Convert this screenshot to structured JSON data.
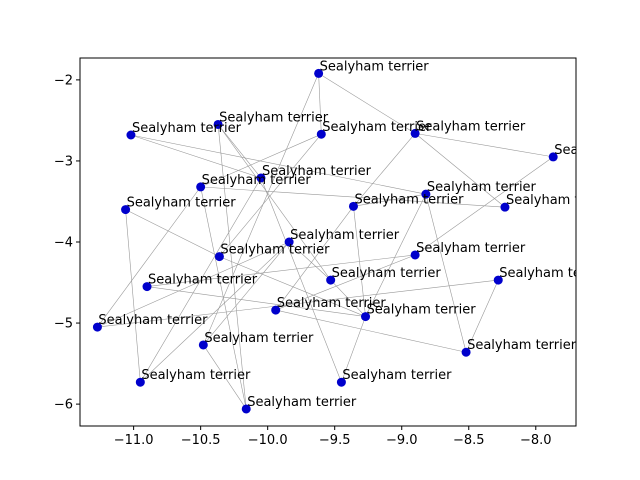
{
  "chart_data": {
    "type": "scatter",
    "title": "",
    "xlabel": "",
    "ylabel": "",
    "xlim": [
      -11.4,
      -7.7
    ],
    "ylim": [
      -6.27,
      -1.73
    ],
    "xticks": [
      -11.0,
      -10.5,
      -10.0,
      -9.5,
      -9.0,
      -8.5,
      -8.0
    ],
    "xtick_labels": [
      "−11.0",
      "−10.5",
      "−10.0",
      "−9.5",
      "−9.0",
      "−8.5",
      "−8.0"
    ],
    "yticks": [
      -2,
      -3,
      -4,
      -5,
      -6
    ],
    "ytick_labels": [
      "−2",
      "−3",
      "−4",
      "−5",
      "−6"
    ],
    "grid": false,
    "point_color": "#0000cc",
    "edge_color": "#999999",
    "points": [
      {
        "x": -9.62,
        "y": -1.92,
        "label": "Sealyham terrier"
      },
      {
        "x": -10.37,
        "y": -2.55,
        "label": "Sealyham terrier"
      },
      {
        "x": -11.02,
        "y": -2.68,
        "label": "Sealyham terrier"
      },
      {
        "x": -9.6,
        "y": -2.67,
        "label": "Sealyham terrier"
      },
      {
        "x": -8.9,
        "y": -2.66,
        "label": "Sealyham terrier"
      },
      {
        "x": -7.87,
        "y": -2.95,
        "label": "Sealyham terrier"
      },
      {
        "x": -10.05,
        "y": -3.21,
        "label": "Sealyham terrier"
      },
      {
        "x": -10.5,
        "y": -3.32,
        "label": "Sealyham terrier"
      },
      {
        "x": -8.82,
        "y": -3.41,
        "label": "Sealyham terrier"
      },
      {
        "x": -9.36,
        "y": -3.56,
        "label": "Sealyham terrier"
      },
      {
        "x": -8.23,
        "y": -3.57,
        "label": "Sealyham terrier"
      },
      {
        "x": -11.06,
        "y": -3.6,
        "label": "Sealyham terrier"
      },
      {
        "x": -9.84,
        "y": -4.0,
        "label": "Sealyham terrier"
      },
      {
        "x": -10.36,
        "y": -4.18,
        "label": "Sealyham terrier"
      },
      {
        "x": -8.9,
        "y": -4.16,
        "label": "Sealyham terrier"
      },
      {
        "x": -9.53,
        "y": -4.47,
        "label": "Sealyham terrier"
      },
      {
        "x": -8.28,
        "y": -4.47,
        "label": "Sealyham terrier"
      },
      {
        "x": -10.9,
        "y": -4.55,
        "label": "Sealyham terrier"
      },
      {
        "x": -9.94,
        "y": -4.84,
        "label": "Sealyham terrier"
      },
      {
        "x": -9.27,
        "y": -4.92,
        "label": "Sealyham terrier"
      },
      {
        "x": -11.27,
        "y": -5.05,
        "label": "Sealyham terrier"
      },
      {
        "x": -10.48,
        "y": -5.27,
        "label": "Sealyham terrier"
      },
      {
        "x": -8.52,
        "y": -5.36,
        "label": "Sealyham terrier"
      },
      {
        "x": -10.95,
        "y": -5.73,
        "label": "Sealyham terrier"
      },
      {
        "x": -9.45,
        "y": -5.73,
        "label": "Sealyham terrier"
      },
      {
        "x": -10.16,
        "y": -6.06,
        "label": "Sealyham terrier"
      }
    ],
    "edges": [
      [
        0,
        4
      ],
      [
        0,
        21
      ],
      [
        4,
        5
      ],
      [
        4,
        9
      ],
      [
        4,
        10
      ],
      [
        5,
        14
      ],
      [
        1,
        6
      ],
      [
        1,
        25
      ],
      [
        1,
        15
      ],
      [
        2,
        8
      ],
      [
        2,
        6
      ],
      [
        3,
        7
      ],
      [
        3,
        13
      ],
      [
        6,
        23
      ],
      [
        6,
        24
      ],
      [
        7,
        20
      ],
      [
        7,
        10
      ],
      [
        8,
        9
      ],
      [
        8,
        19
      ],
      [
        9,
        18
      ],
      [
        9,
        19
      ],
      [
        11,
        13
      ],
      [
        11,
        23
      ],
      [
        12,
        15
      ],
      [
        12,
        21
      ],
      [
        12,
        23
      ],
      [
        13,
        19
      ],
      [
        14,
        17
      ],
      [
        14,
        18
      ],
      [
        15,
        19
      ],
      [
        16,
        20
      ],
      [
        16,
        22
      ],
      [
        17,
        19
      ],
      [
        18,
        22
      ],
      [
        19,
        24
      ],
      [
        20,
        12
      ],
      [
        21,
        25
      ],
      [
        22,
        8
      ],
      [
        7,
        25
      ],
      [
        3,
        0
      ]
    ]
  }
}
